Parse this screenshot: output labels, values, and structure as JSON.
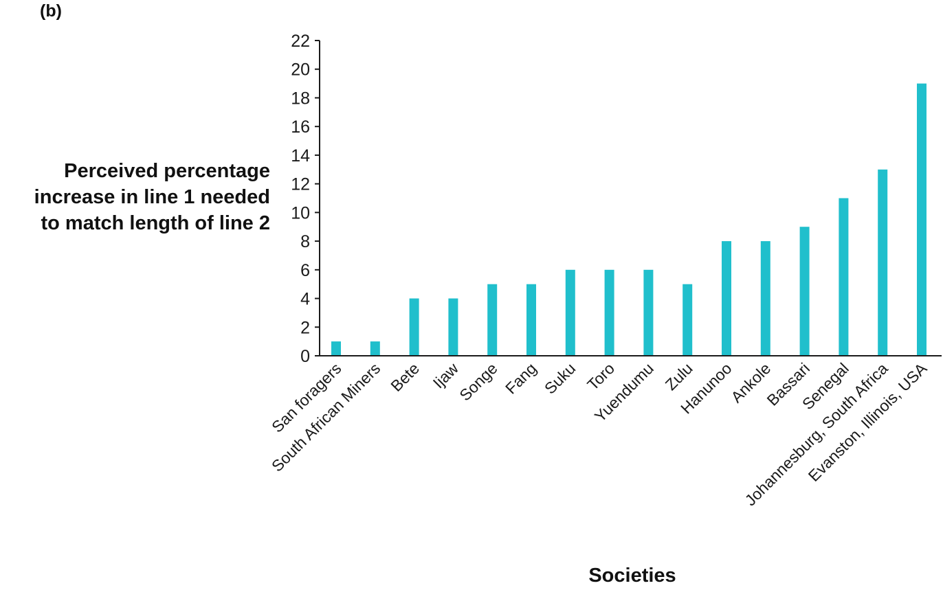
{
  "panel_label": "(b)",
  "chart_data": {
    "type": "bar",
    "title": "",
    "xlabel": "Societies",
    "ylabel": "Perceived percentage\nincrease in line 1 needed\nto match length of line 2",
    "ylim": [
      0,
      22
    ],
    "yticks": [
      0,
      2,
      4,
      6,
      8,
      10,
      12,
      14,
      16,
      18,
      20,
      22
    ],
    "grid": false,
    "bar_color": "#20BFCC",
    "categories": [
      "San foragers",
      "South African Miners",
      "Bete",
      "Ijaw",
      "Songe",
      "Fang",
      "Suku",
      "Toro",
      "Yuendumu",
      "Zulu",
      "Hanunoo",
      "Ankole",
      "Bassari",
      "Senegal",
      "Johannesburg, South Africa",
      "Evanston, Illinois, USA"
    ],
    "values": [
      1,
      1,
      4,
      4,
      5,
      5,
      6,
      6,
      6,
      5,
      8,
      8,
      9,
      11,
      13,
      19
    ]
  }
}
